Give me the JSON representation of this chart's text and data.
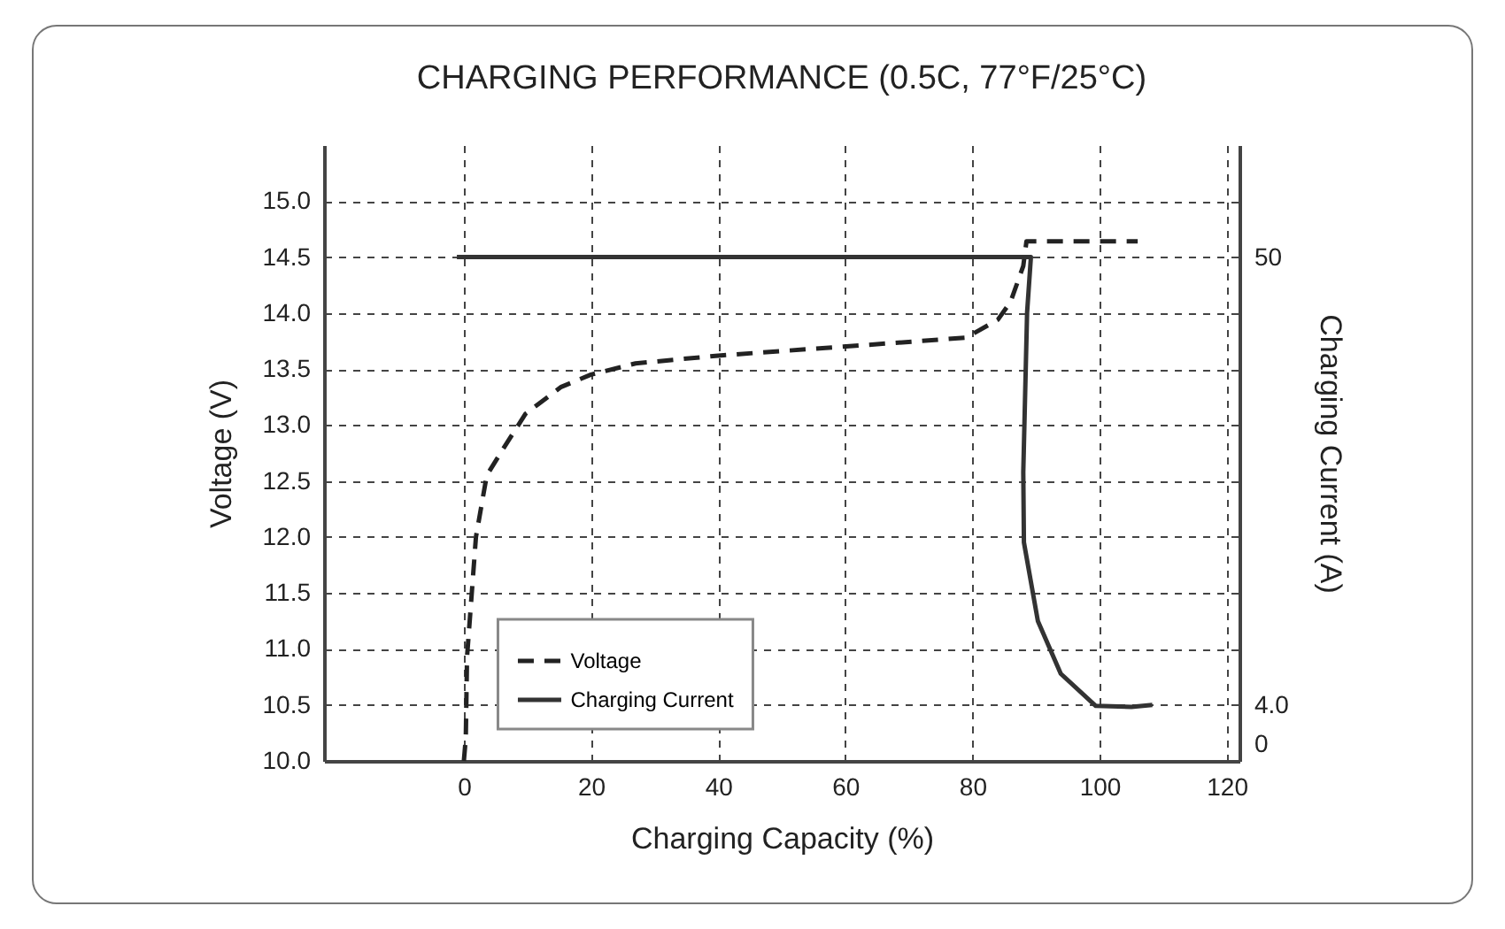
{
  "chart_data": {
    "type": "line",
    "title": "CHARGING PERFORMANCE (0.5C, 77°F/25°C)",
    "xlabel": "Charging Capacity (%)",
    "ylabel": "Voltage (V)",
    "y2label": "Charging Current (A)",
    "xlim": [
      -22,
      122
    ],
    "xticks": [
      0,
      20,
      40,
      60,
      80,
      100,
      120
    ],
    "ylim": [
      10,
      15.5
    ],
    "yticks": [
      {
        "value": 10,
        "label": "10.0"
      },
      {
        "value": 10.5,
        "label": "10.5"
      },
      {
        "value": 11,
        "label": "11.0"
      },
      {
        "value": 11.5,
        "label": "11.5"
      },
      {
        "value": 12,
        "label": "12.0"
      },
      {
        "value": 12.5,
        "label": "12.5"
      },
      {
        "value": 13,
        "label": "13.0"
      },
      {
        "value": 13.5,
        "label": "13.5"
      },
      {
        "value": 14,
        "label": "14.0"
      },
      {
        "value": 14.5,
        "label": "14.5"
      },
      {
        "value": 15,
        "label": "15.0"
      }
    ],
    "y2lim": [
      -1.75,
      61.5
    ],
    "y2ticks": [
      0,
      {
        "value": 4,
        "label": "4.0"
      },
      50
    ],
    "grid": true,
    "legend": "bottom left",
    "series": [
      {
        "name": "Voltage",
        "color": "#222222",
        "line_style": "dashed",
        "x": [
          0,
          0.3,
          0.5,
          1.9,
          3.6,
          6.1,
          9.7,
          15.3,
          20,
          27,
          40,
          59.7,
          79,
          84,
          86,
          88,
          88.5,
          106
        ],
        "values": [
          10.0,
          10.2,
          10.93,
          12.0,
          12.55,
          12.78,
          13.1,
          13.34,
          13.45,
          13.55,
          13.62,
          13.7,
          13.78,
          13.94,
          14.1,
          14.42,
          14.64,
          14.64
        ]
      },
      {
        "name": "Charging Current",
        "color": "#333333",
        "line_style": "solid",
        "axis": "y2",
        "x": [
          -1.1,
          89.2,
          88.6,
          88.0,
          88.1,
          90.3,
          93.9,
          99.4,
          105,
          108.3
        ],
        "values": [
          50,
          50,
          44.3,
          27.9,
          20.7,
          12.6,
          7.2,
          3.9,
          3.8,
          4.0
        ]
      }
    ]
  }
}
